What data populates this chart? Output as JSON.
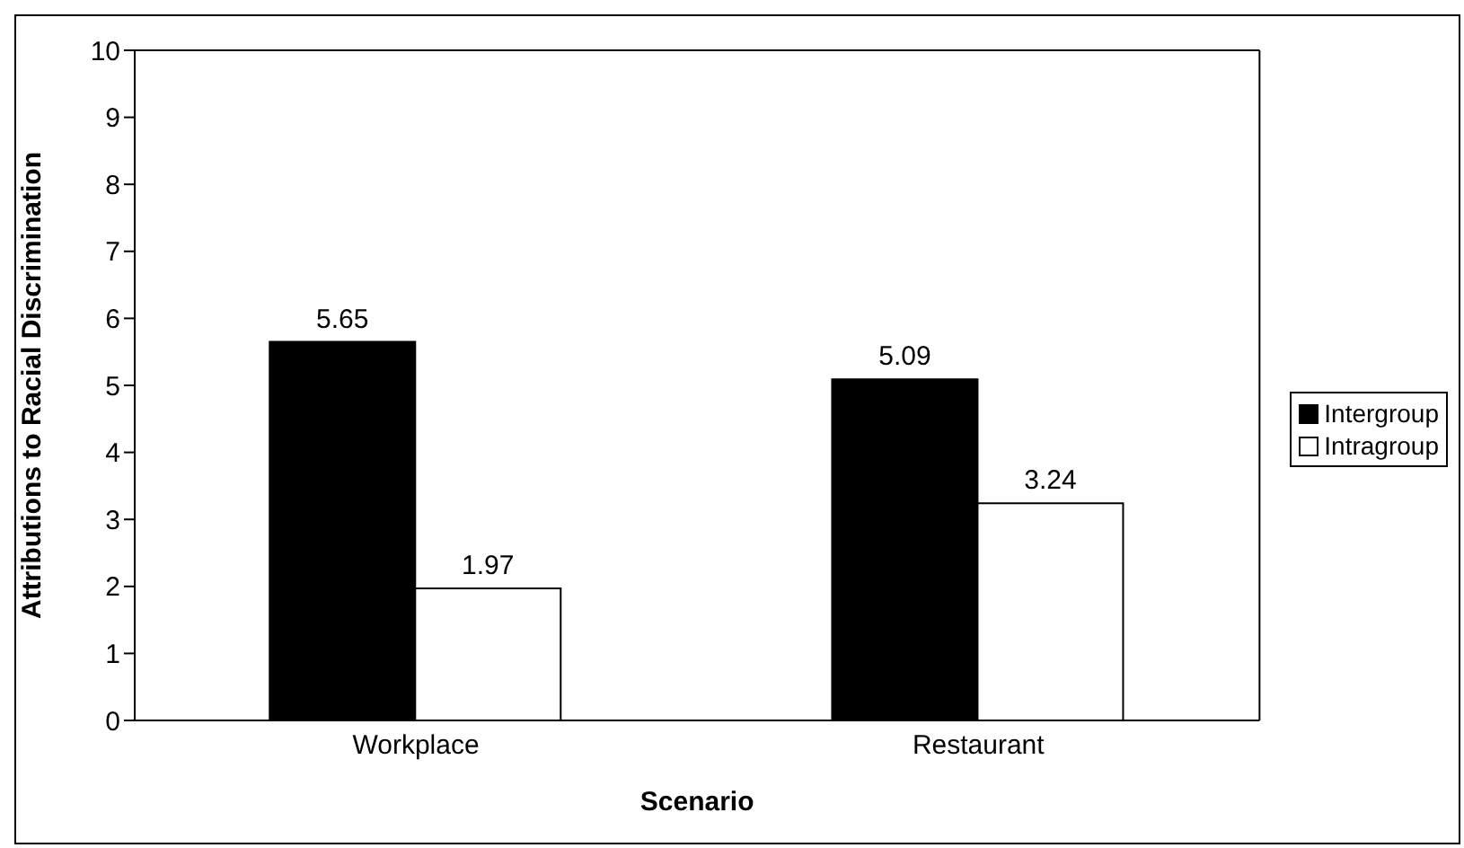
{
  "chart_data": {
    "type": "bar",
    "xlabel": "Scenario",
    "ylabel": "Attributions to Racial Discrimination",
    "categories": [
      "Workplace",
      "Restaurant"
    ],
    "series": [
      {
        "name": "Intergroup",
        "color": "#000000",
        "values": [
          5.65,
          5.09
        ]
      },
      {
        "name": "Intragroup",
        "color": "#ffffff",
        "values": [
          1.97,
          3.24
        ]
      }
    ],
    "ylim": [
      0,
      10
    ],
    "yticks": [
      0,
      1,
      2,
      3,
      4,
      5,
      6,
      7,
      8,
      9,
      10
    ],
    "grid": false,
    "legend": "right",
    "data_labels": true
  }
}
